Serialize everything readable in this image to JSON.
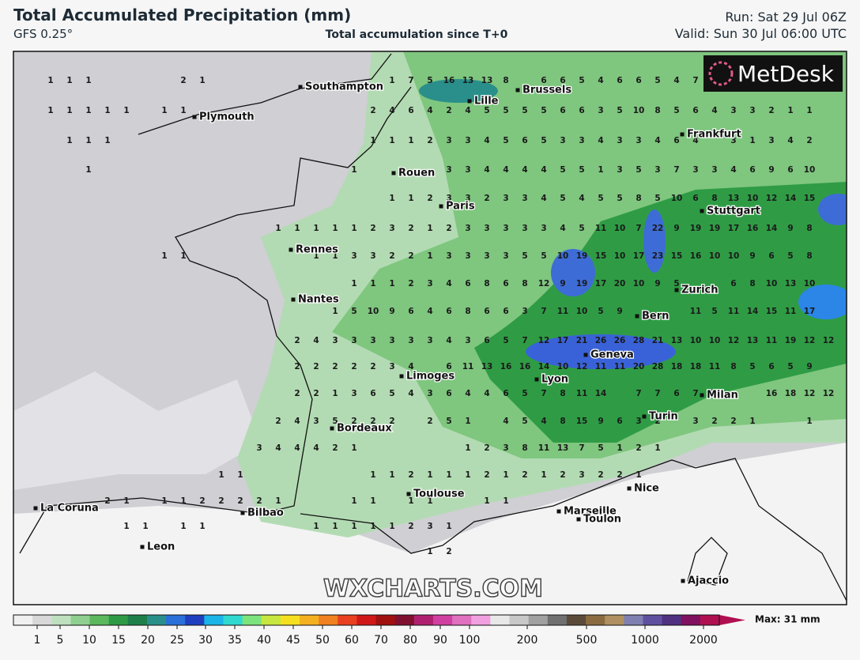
{
  "header": {
    "title": "Total Accumulated Precipitation (mm)",
    "model": "GFS 0.25°",
    "subtitle": "Total accumulation since T+0",
    "run": "Run: Sat 29 Jul 06Z",
    "valid": "Valid: Sun 30 Jul 06:00 UTC",
    "logo": "MetDesk"
  },
  "map": {
    "watermark": "WXCHARTS.COM",
    "cities": [
      "Southampton",
      "Plymouth",
      "Lille",
      "Brussels",
      "Frankfurt",
      "Rouen",
      "Paris",
      "Stuttgart",
      "Rennes",
      "Nantes",
      "Zurich",
      "Bern",
      "Geneva",
      "Limoges",
      "Lyon",
      "Milan",
      "Turin",
      "Bordeaux",
      "Toulouse",
      "Nice",
      "Marseille",
      "Toulon",
      "La Coruna",
      "Bilbao",
      "Leon",
      "Ajaccio"
    ],
    "precip_grid": [
      [
        null,
        1,
        1,
        1,
        null,
        null,
        null,
        null,
        2,
        1,
        null,
        null,
        null,
        null,
        null,
        null,
        null,
        null,
        null,
        1,
        7,
        5,
        16,
        13,
        13,
        8,
        null,
        6,
        6,
        5,
        4,
        6,
        6,
        5,
        4,
        7
      ],
      [
        null,
        1,
        1,
        1,
        1,
        1,
        null,
        1,
        1,
        null,
        null,
        null,
        null,
        null,
        null,
        null,
        null,
        null,
        2,
        4,
        6,
        4,
        2,
        4,
        5,
        5,
        5,
        5,
        6,
        6,
        3,
        5,
        10,
        8,
        5,
        6,
        4,
        3,
        3,
        2,
        1,
        1
      ],
      [
        null,
        null,
        1,
        1,
        1,
        null,
        null,
        null,
        null,
        null,
        null,
        null,
        null,
        null,
        null,
        null,
        null,
        null,
        1,
        1,
        1,
        2,
        3,
        3,
        4,
        5,
        6,
        5,
        3,
        3,
        4,
        3,
        3,
        4,
        6,
        4,
        null,
        3,
        1,
        3,
        4,
        2
      ],
      [
        null,
        null,
        null,
        1,
        null,
        null,
        null,
        null,
        null,
        null,
        null,
        null,
        null,
        null,
        null,
        null,
        null,
        1,
        null,
        null,
        null,
        null,
        3,
        3,
        4,
        4,
        4,
        4,
        5,
        5,
        1,
        3,
        5,
        3,
        7,
        3,
        3,
        4,
        6,
        9,
        6,
        10
      ],
      [
        null,
        null,
        null,
        null,
        null,
        null,
        null,
        null,
        null,
        null,
        null,
        null,
        null,
        null,
        null,
        null,
        null,
        null,
        null,
        1,
        1,
        2,
        3,
        3,
        2,
        3,
        3,
        4,
        5,
        4,
        5,
        5,
        8,
        5,
        10,
        6,
        8,
        13,
        10,
        12,
        14,
        15
      ],
      [
        null,
        null,
        null,
        null,
        null,
        null,
        null,
        null,
        null,
        null,
        null,
        null,
        null,
        1,
        1,
        1,
        1,
        1,
        2,
        3,
        2,
        1,
        2,
        3,
        3,
        3,
        3,
        3,
        4,
        5,
        11,
        10,
        7,
        22,
        9,
        19,
        19,
        17,
        16,
        14,
        9,
        8
      ],
      [
        null,
        null,
        null,
        null,
        null,
        null,
        null,
        1,
        1,
        null,
        null,
        null,
        null,
        null,
        null,
        1,
        1,
        3,
        3,
        2,
        2,
        1,
        3,
        3,
        3,
        3,
        5,
        5,
        10,
        19,
        15,
        10,
        17,
        23,
        15,
        16,
        10,
        10,
        9,
        6,
        5,
        8
      ],
      [
        null,
        null,
        null,
        null,
        null,
        null,
        null,
        null,
        null,
        null,
        null,
        null,
        null,
        null,
        null,
        null,
        null,
        1,
        1,
        1,
        2,
        3,
        4,
        6,
        8,
        6,
        8,
        12,
        9,
        19,
        17,
        20,
        10,
        9,
        5,
        null,
        null,
        6,
        8,
        10,
        13,
        10
      ],
      [
        null,
        null,
        null,
        null,
        null,
        null,
        null,
        null,
        null,
        null,
        null,
        null,
        null,
        null,
        null,
        null,
        1,
        5,
        10,
        9,
        6,
        4,
        6,
        8,
        6,
        6,
        3,
        7,
        11,
        10,
        5,
        9,
        null,
        null,
        null,
        11,
        5,
        11,
        14,
        15,
        11,
        17
      ],
      [
        null,
        null,
        null,
        null,
        null,
        null,
        null,
        null,
        null,
        null,
        null,
        null,
        null,
        null,
        2,
        4,
        3,
        3,
        3,
        3,
        3,
        3,
        4,
        3,
        6,
        5,
        7,
        12,
        17,
        21,
        26,
        26,
        28,
        21,
        13,
        10,
        10,
        12,
        13,
        11,
        19,
        12,
        12
      ],
      [
        null,
        null,
        null,
        null,
        null,
        null,
        null,
        null,
        null,
        null,
        null,
        null,
        null,
        null,
        2,
        2,
        2,
        2,
        2,
        3,
        4,
        null,
        6,
        11,
        13,
        16,
        16,
        14,
        10,
        12,
        11,
        11,
        20,
        28,
        18,
        18,
        11,
        8,
        5,
        6,
        5,
        9
      ],
      [
        null,
        null,
        null,
        null,
        null,
        null,
        null,
        null,
        null,
        null,
        null,
        null,
        null,
        null,
        2,
        2,
        1,
        3,
        6,
        5,
        4,
        3,
        6,
        4,
        4,
        6,
        5,
        7,
        8,
        11,
        14,
        null,
        7,
        7,
        6,
        7,
        7,
        null,
        null,
        16,
        18,
        12,
        12
      ],
      [
        null,
        null,
        null,
        null,
        null,
        null,
        null,
        null,
        null,
        null,
        null,
        null,
        null,
        2,
        4,
        3,
        5,
        2,
        2,
        2,
        null,
        2,
        5,
        1,
        null,
        4,
        5,
        4,
        8,
        15,
        9,
        6,
        3,
        2,
        null,
        3,
        2,
        2,
        1,
        null,
        null,
        1
      ],
      [
        null,
        null,
        null,
        null,
        null,
        null,
        null,
        null,
        null,
        null,
        null,
        null,
        3,
        4,
        4,
        4,
        2,
        1,
        null,
        null,
        null,
        null,
        null,
        1,
        2,
        3,
        8,
        11,
        13,
        7,
        5,
        1,
        2,
        1
      ],
      [
        null,
        null,
        null,
        null,
        null,
        null,
        null,
        null,
        null,
        null,
        1,
        1,
        null,
        null,
        null,
        null,
        null,
        null,
        1,
        1,
        2,
        1,
        1,
        1,
        2,
        1,
        2,
        1,
        2,
        3,
        2,
        2,
        1
      ],
      [
        null,
        null,
        null,
        null,
        2,
        1,
        null,
        1,
        1,
        2,
        2,
        2,
        2,
        1,
        null,
        null,
        null,
        1,
        1,
        null,
        1,
        1,
        null,
        null,
        1,
        1
      ],
      [
        null,
        null,
        null,
        null,
        null,
        1,
        1,
        null,
        1,
        1,
        null,
        null,
        null,
        null,
        null,
        1,
        1,
        1,
        1,
        1,
        2,
        3,
        1
      ],
      [
        null,
        null,
        null,
        null,
        null,
        null,
        null,
        null,
        null,
        null,
        null,
        null,
        null,
        null,
        null,
        null,
        null,
        null,
        null,
        null,
        null,
        1,
        2
      ]
    ]
  },
  "legend": {
    "ticks": [
      1,
      5,
      10,
      15,
      20,
      25,
      30,
      35,
      40,
      45,
      50,
      60,
      70,
      80,
      90,
      100,
      200,
      500,
      1000,
      2000
    ],
    "max_label": "Max: 31 mm"
  }
}
